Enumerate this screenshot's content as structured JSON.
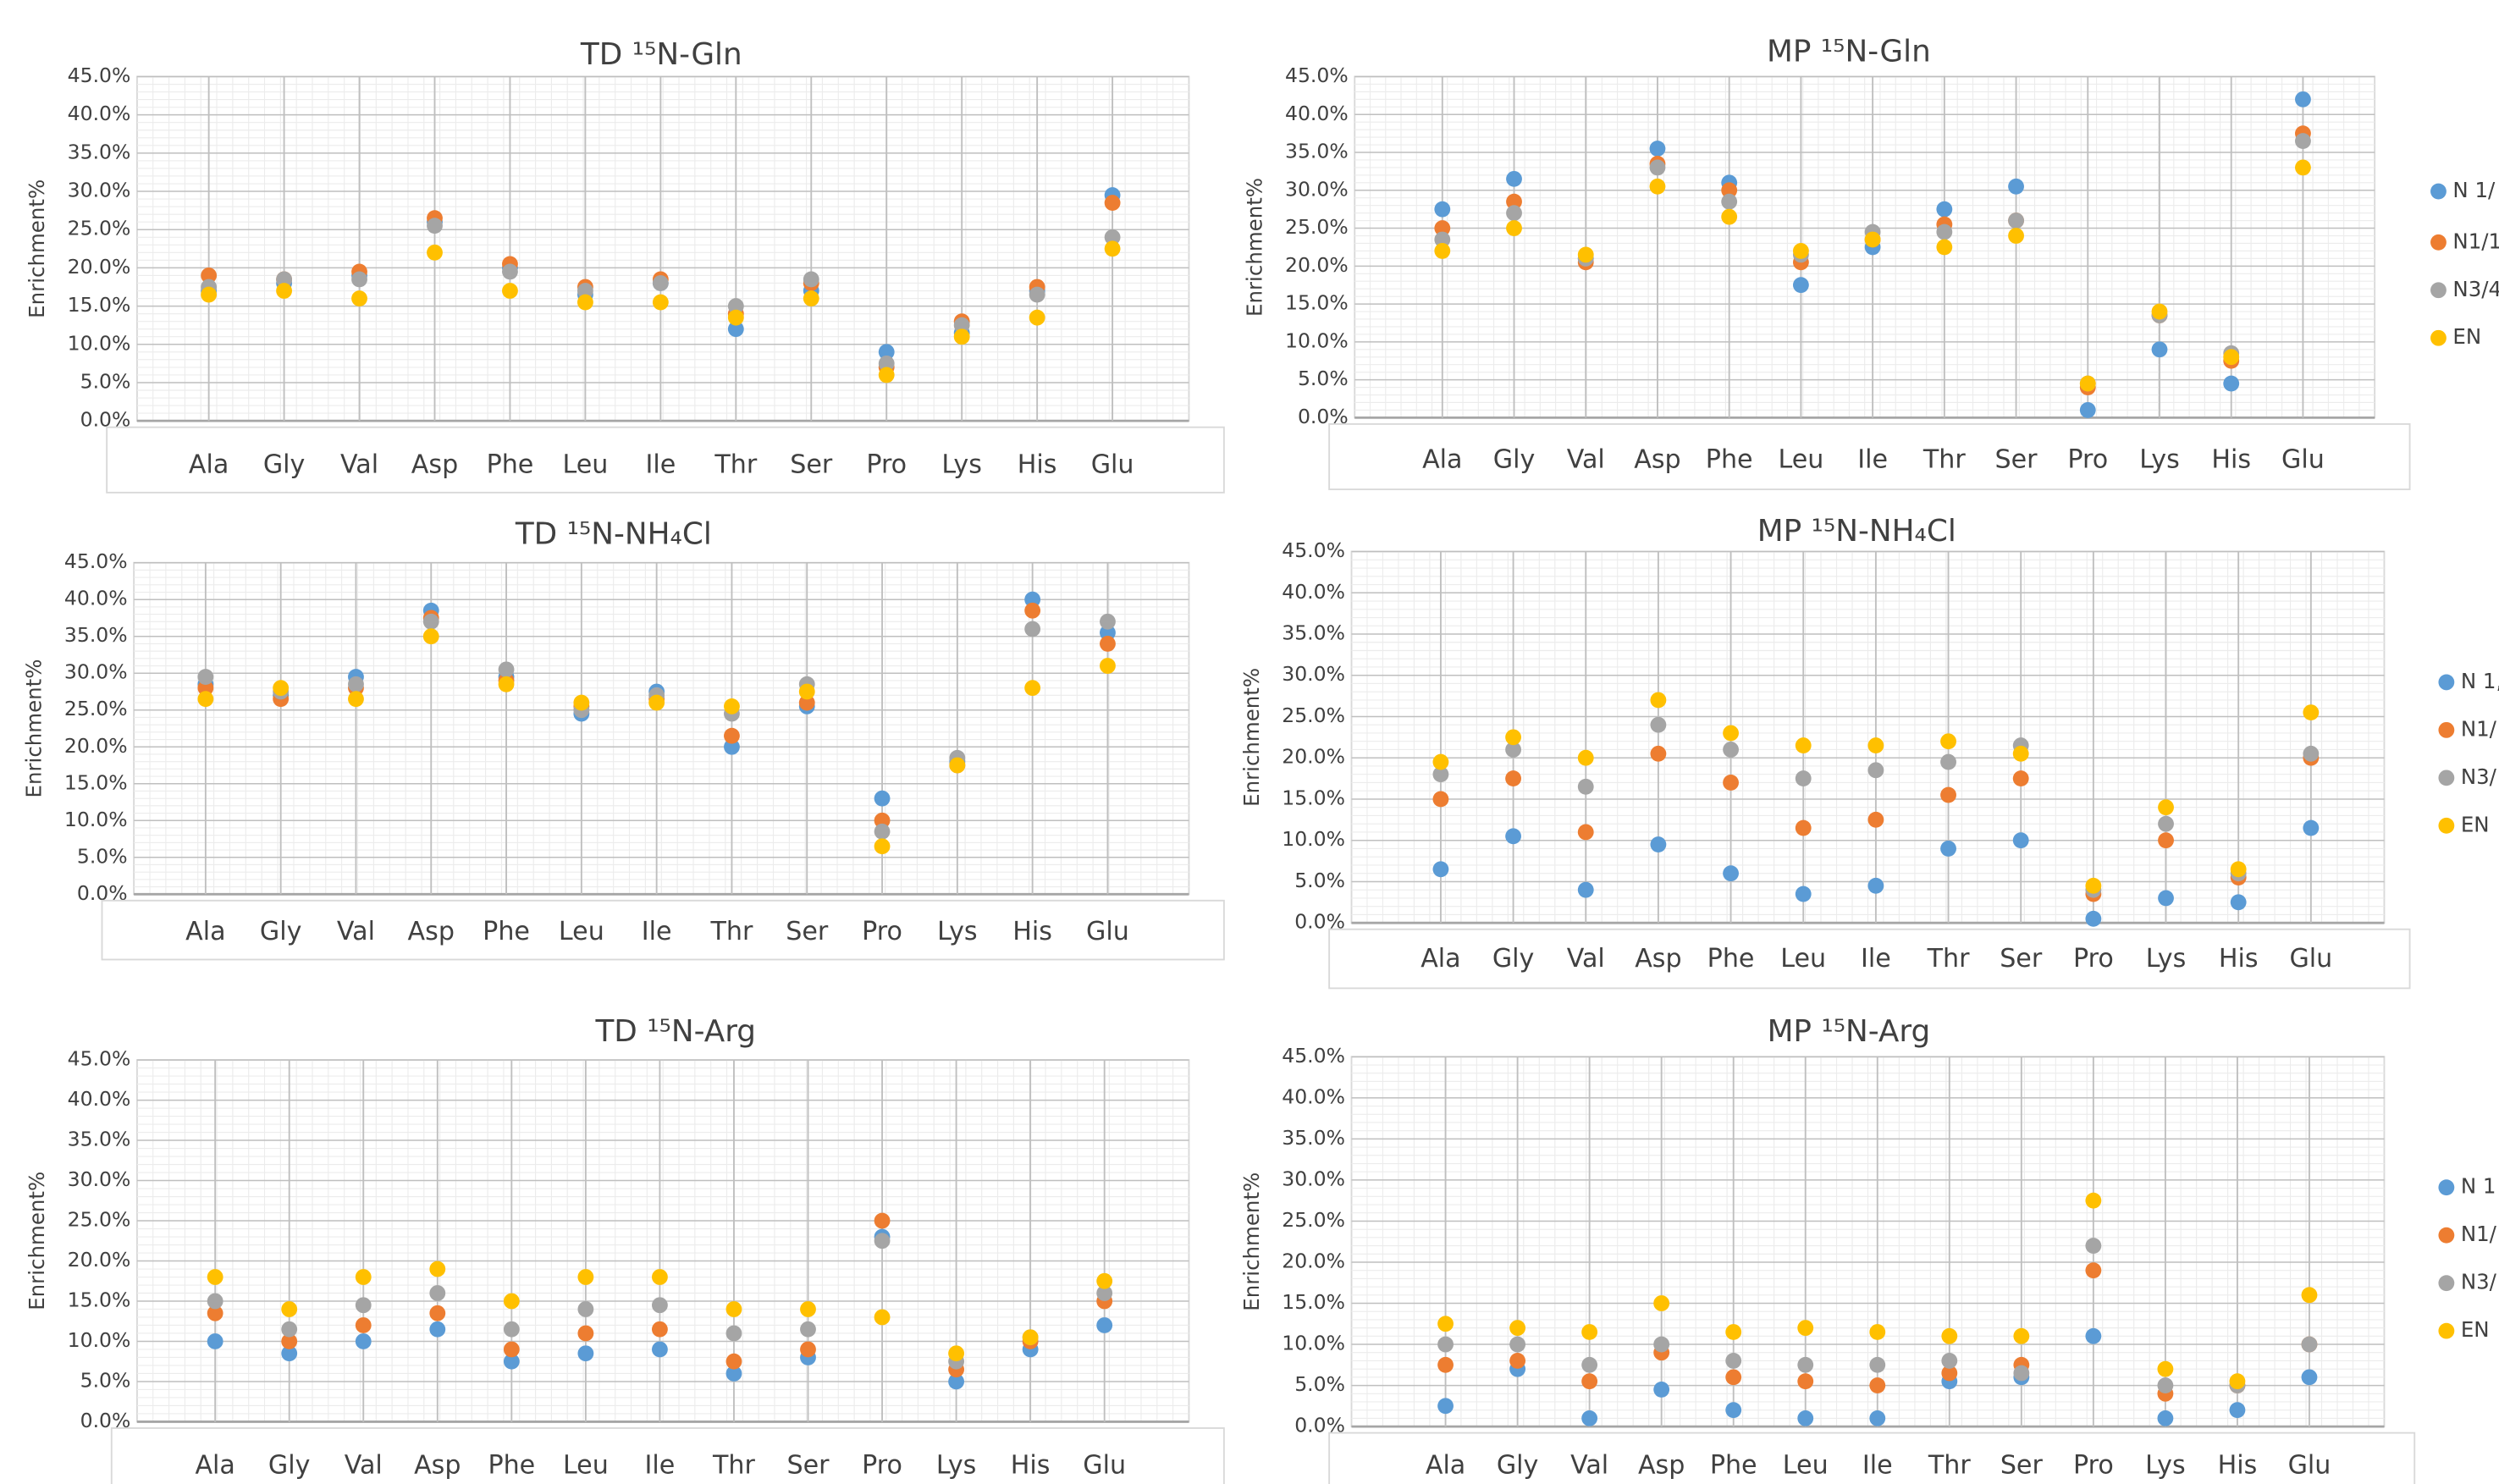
{
  "chart_data": [
    {
      "type": "dot",
      "title": "TD ¹⁵N-Gln",
      "ylabel": "Enrichment%",
      "categories": [
        "Ala",
        "Gly",
        "Val",
        "Asp",
        "Phe",
        "Leu",
        "Ile",
        "Thr",
        "Ser",
        "Pro",
        "Lys",
        "His",
        "Glu"
      ],
      "series": [
        {
          "color": "#5b9bd5",
          "values": [
            17,
            18,
            19,
            26,
            20,
            16.5,
            18,
            12,
            17,
            9,
            11.5,
            17,
            29.5
          ]
        },
        {
          "color": "#ed7d31",
          "values": [
            19,
            18.5,
            19.5,
            26.5,
            20.5,
            17.5,
            18.5,
            14,
            18,
            7,
            13,
            17.5,
            28.5
          ]
        },
        {
          "color": "#a5a5a5",
          "values": [
            17.5,
            18.5,
            18.5,
            25.5,
            19.5,
            17,
            18,
            15,
            18.5,
            7.5,
            12.5,
            16.5,
            24
          ]
        },
        {
          "color": "#ffc000",
          "values": [
            16.5,
            17,
            16,
            22,
            17,
            15.5,
            15.5,
            13.5,
            16,
            6,
            11,
            13.5,
            22.5
          ]
        }
      ],
      "ylim": [
        0,
        45
      ],
      "yticks": [
        {
          "value": 0,
          "label": "0.0%"
        },
        {
          "value": 5,
          "label": "5.0%"
        },
        {
          "value": 10,
          "label": "10.0%"
        },
        {
          "value": 15,
          "label": "15.0%"
        },
        {
          "value": 20,
          "label": "20.0%"
        },
        {
          "value": 25,
          "label": "25.0%"
        },
        {
          "value": 30,
          "label": "30.0%"
        },
        {
          "value": 35,
          "label": "35.0%"
        },
        {
          "value": 40,
          "label": "40.0%"
        },
        {
          "value": 45,
          "label": "45.0%"
        }
      ],
      "grid": true
    },
    {
      "type": "dot",
      "title": "MP ¹⁵N-Gln",
      "ylabel": "Enrichment%",
      "categories": [
        "Ala",
        "Gly",
        "Val",
        "Asp",
        "Phe",
        "Leu",
        "Ile",
        "Thr",
        "Ser",
        "Pro",
        "Lys",
        "His",
        "Glu"
      ],
      "series": [
        {
          "name": "N 1/",
          "color": "#5b9bd5",
          "values": [
            27.5,
            31.5,
            21,
            35.5,
            31,
            17.5,
            22.5,
            27.5,
            30.5,
            1,
            9,
            4.5,
            42
          ]
        },
        {
          "name": "N1/1",
          "color": "#ed7d31",
          "values": [
            25,
            28.5,
            20.5,
            33.5,
            30,
            20.5,
            23.5,
            25.5,
            26,
            4,
            13.5,
            7.5,
            37.5
          ]
        },
        {
          "name": "N3/4",
          "color": "#a5a5a5",
          "values": [
            23.5,
            27,
            21,
            33,
            28.5,
            21.5,
            24.5,
            24.5,
            26,
            4.5,
            13.5,
            8.5,
            36.5
          ]
        },
        {
          "name": "EN",
          "color": "#ffc000",
          "values": [
            22,
            25,
            21.5,
            30.5,
            26.5,
            22,
            23.5,
            22.5,
            24,
            4.5,
            14,
            8,
            33
          ]
        }
      ],
      "ylim": [
        0,
        45
      ],
      "yticks": [
        {
          "value": 0,
          "label": "0.0%"
        },
        {
          "value": 5,
          "label": "5.0%"
        },
        {
          "value": 10,
          "label": "10.0%"
        },
        {
          "value": 15,
          "label": "15.0%"
        },
        {
          "value": 20,
          "label": "20.0%"
        },
        {
          "value": 25,
          "label": "25.0%"
        },
        {
          "value": 30,
          "label": "30.0%"
        },
        {
          "value": 35,
          "label": "35.0%"
        },
        {
          "value": 40,
          "label": "40.0%"
        },
        {
          "value": 45,
          "label": "45.0%"
        }
      ],
      "grid": true,
      "legend": "right"
    },
    {
      "type": "dot",
      "title": "TD ¹⁵N-NH₄Cl",
      "ylabel": "Enrichment%",
      "categories": [
        "Ala",
        "Gly",
        "Val",
        "Asp",
        "Phe",
        "Leu",
        "Ile",
        "Thr",
        "Ser",
        "Pro",
        "Lys",
        "His",
        "Glu"
      ],
      "series": [
        {
          "color": "#5b9bd5",
          "values": [
            28.5,
            27,
            29.5,
            38.5,
            29.5,
            24.5,
            27.5,
            20,
            25.5,
            13,
            18,
            40,
            35.5
          ]
        },
        {
          "color": "#ed7d31",
          "values": [
            28,
            26.5,
            28,
            37.5,
            29,
            25.5,
            26.5,
            21.5,
            26,
            10,
            17.5,
            38.5,
            34
          ]
        },
        {
          "color": "#a5a5a5",
          "values": [
            29.5,
            27.5,
            28.5,
            37,
            30.5,
            25,
            27,
            24.5,
            28.5,
            8.5,
            18.5,
            36,
            37
          ]
        },
        {
          "color": "#ffc000",
          "values": [
            26.5,
            28,
            26.5,
            35,
            28.5,
            26,
            26,
            25.5,
            27.5,
            6.5,
            17.5,
            28,
            31
          ]
        }
      ],
      "ylim": [
        0,
        45
      ],
      "yticks": [
        {
          "value": 0,
          "label": "0.0%"
        },
        {
          "value": 5,
          "label": "5.0%"
        },
        {
          "value": 10,
          "label": "10.0%"
        },
        {
          "value": 15,
          "label": "15.0%"
        },
        {
          "value": 20,
          "label": "20.0%"
        },
        {
          "value": 25,
          "label": "25.0%"
        },
        {
          "value": 30,
          "label": "30.0%"
        },
        {
          "value": 35,
          "label": "35.0%"
        },
        {
          "value": 40,
          "label": "40.0%"
        },
        {
          "value": 45,
          "label": "45.0%"
        }
      ],
      "grid": true
    },
    {
      "type": "dot",
      "title": "MP ¹⁵N-NH₄Cl",
      "ylabel": "Enrichment%",
      "categories": [
        "Ala",
        "Gly",
        "Val",
        "Asp",
        "Phe",
        "Leu",
        "Ile",
        "Thr",
        "Ser",
        "Pro",
        "Lys",
        "His",
        "Glu"
      ],
      "series": [
        {
          "name": "N 1,",
          "color": "#5b9bd5",
          "values": [
            6.5,
            10.5,
            4,
            9.5,
            6,
            3.5,
            4.5,
            9,
            10,
            0.5,
            3,
            2.5,
            11.5
          ]
        },
        {
          "name": "N1/",
          "color": "#ed7d31",
          "values": [
            15,
            17.5,
            11,
            20.5,
            17,
            11.5,
            12.5,
            15.5,
            17.5,
            3.5,
            10,
            5.5,
            20
          ]
        },
        {
          "name": "N3/",
          "color": "#a5a5a5",
          "values": [
            18,
            21,
            16.5,
            24,
            21,
            17.5,
            18.5,
            19.5,
            21.5,
            4,
            12,
            6,
            20.5
          ]
        },
        {
          "name": "EN",
          "color": "#ffc000",
          "values": [
            19.5,
            22.5,
            20,
            27,
            23,
            21.5,
            21.5,
            22,
            20.5,
            4.5,
            14,
            6.5,
            25.5
          ]
        }
      ],
      "ylim": [
        0,
        45
      ],
      "yticks": [
        {
          "value": 0,
          "label": "0.0%"
        },
        {
          "value": 5,
          "label": "5.0%"
        },
        {
          "value": 10,
          "label": "10.0%"
        },
        {
          "value": 15,
          "label": "15.0%"
        },
        {
          "value": 20,
          "label": "20.0%"
        },
        {
          "value": 25,
          "label": "25.0%"
        },
        {
          "value": 30,
          "label": "30.0%"
        },
        {
          "value": 35,
          "label": "35.0%"
        },
        {
          "value": 40,
          "label": "40.0%"
        },
        {
          "value": 45,
          "label": "45.0%"
        }
      ],
      "grid": true,
      "legend": "right"
    },
    {
      "type": "dot",
      "title": "TD ¹⁵N-Arg",
      "ylabel": "Enrichment%",
      "categories": [
        "Ala",
        "Gly",
        "Val",
        "Asp",
        "Phe",
        "Leu",
        "Ile",
        "Thr",
        "Ser",
        "Pro",
        "Lys",
        "His",
        "Glu"
      ],
      "series": [
        {
          "color": "#5b9bd5",
          "values": [
            10,
            8.5,
            10,
            11.5,
            7.5,
            8.5,
            9,
            6,
            8,
            23,
            5,
            9,
            12
          ]
        },
        {
          "color": "#ed7d31",
          "values": [
            13.5,
            10,
            12,
            13.5,
            9,
            11,
            11.5,
            7.5,
            9,
            25,
            6.5,
            10,
            15
          ]
        },
        {
          "color": "#a5a5a5",
          "values": [
            15,
            11.5,
            14.5,
            16,
            11.5,
            14,
            14.5,
            11,
            11.5,
            22.5,
            7.5,
            10.5,
            16
          ]
        },
        {
          "color": "#ffc000",
          "values": [
            18,
            14,
            18,
            19,
            15,
            18,
            18,
            14,
            14,
            13,
            8.5,
            10.5,
            17.5
          ]
        }
      ],
      "ylim": [
        0,
        45
      ],
      "yticks": [
        {
          "value": 0,
          "label": "0.0%"
        },
        {
          "value": 5,
          "label": "5.0%"
        },
        {
          "value": 10,
          "label": "10.0%"
        },
        {
          "value": 15,
          "label": "15.0%"
        },
        {
          "value": 20,
          "label": "20.0%"
        },
        {
          "value": 25,
          "label": "25.0%"
        },
        {
          "value": 30,
          "label": "30.0%"
        },
        {
          "value": 35,
          "label": "35.0%"
        },
        {
          "value": 40,
          "label": "40.0%"
        },
        {
          "value": 45,
          "label": "45.0%"
        }
      ],
      "grid": true
    },
    {
      "type": "dot",
      "title": "MP ¹⁵N-Arg",
      "ylabel": "Enrichment%",
      "categories": [
        "Ala",
        "Gly",
        "Val",
        "Asp",
        "Phe",
        "Leu",
        "Ile",
        "Thr",
        "Ser",
        "Pro",
        "Lys",
        "His",
        "Glu"
      ],
      "series": [
        {
          "name": "N 1",
          "color": "#5b9bd5",
          "values": [
            2.5,
            7,
            1,
            4.5,
            2,
            1,
            1,
            5.5,
            6,
            11,
            1,
            2,
            6
          ]
        },
        {
          "name": "N1/",
          "color": "#ed7d31",
          "values": [
            7.5,
            8,
            5.5,
            9,
            6,
            5.5,
            5,
            6.5,
            7.5,
            19,
            4,
            5,
            10
          ]
        },
        {
          "name": "N3/",
          "color": "#a5a5a5",
          "values": [
            10,
            10,
            7.5,
            10,
            8,
            7.5,
            7.5,
            8,
            6.5,
            22,
            5,
            5,
            10
          ]
        },
        {
          "name": "EN",
          "color": "#ffc000",
          "values": [
            12.5,
            12,
            11.5,
            15,
            11.5,
            12,
            11.5,
            11,
            11,
            27.5,
            7,
            5.5,
            16
          ]
        }
      ],
      "ylim": [
        0,
        45
      ],
      "yticks": [
        {
          "value": 0,
          "label": "0.0%"
        },
        {
          "value": 5,
          "label": "5.0%"
        },
        {
          "value": 10,
          "label": "10.0%"
        },
        {
          "value": 15,
          "label": "15.0%"
        },
        {
          "value": 20,
          "label": "20.0%"
        },
        {
          "value": 25,
          "label": "25.0%"
        },
        {
          "value": 30,
          "label": "30.0%"
        },
        {
          "value": 35,
          "label": "35.0%"
        },
        {
          "value": 40,
          "label": "40.0%"
        },
        {
          "value": 45,
          "label": "45.0%"
        }
      ],
      "grid": true,
      "legend": "right"
    }
  ]
}
